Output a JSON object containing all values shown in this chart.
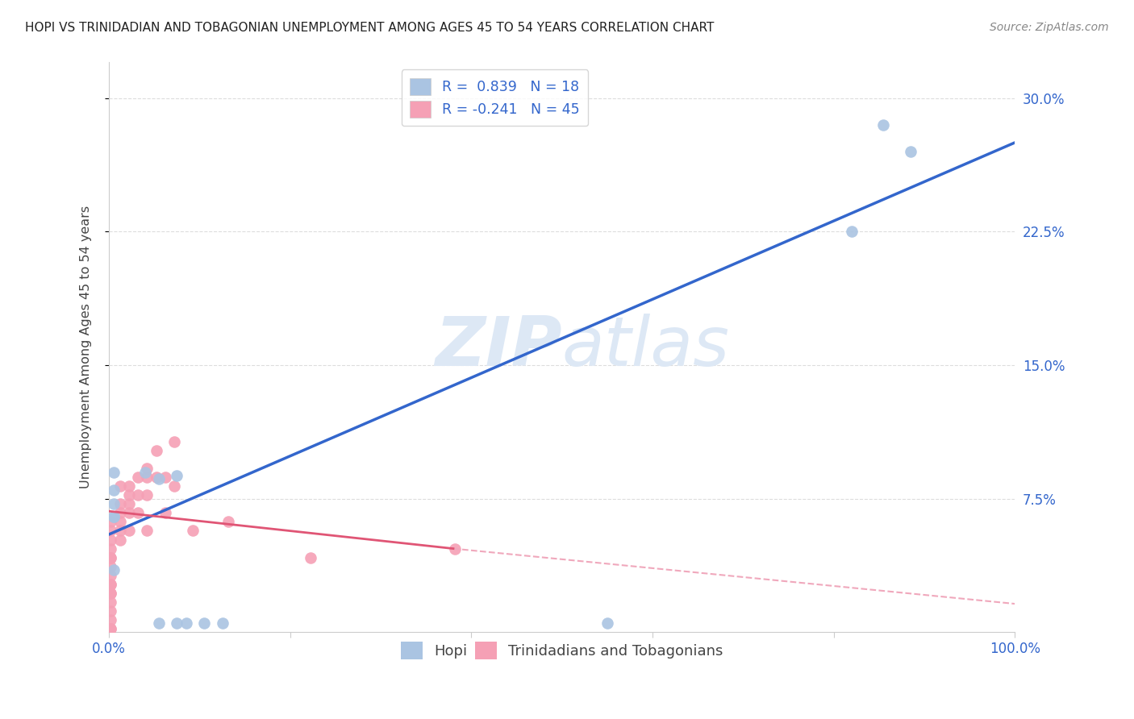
{
  "title": "HOPI VS TRINIDADIAN AND TOBAGONIAN UNEMPLOYMENT AMONG AGES 45 TO 54 YEARS CORRELATION CHART",
  "source": "Source: ZipAtlas.com",
  "ylabel": "Unemployment Among Ages 45 to 54 years",
  "xlim": [
    0.0,
    1.0
  ],
  "ylim": [
    0.0,
    0.32
  ],
  "xticks": [
    0.0,
    0.2,
    0.4,
    0.6,
    0.8,
    1.0
  ],
  "xticklabels": [
    "0.0%",
    "",
    "",
    "",
    "",
    "100.0%"
  ],
  "yticks": [
    0.075,
    0.15,
    0.225,
    0.3
  ],
  "yticklabels": [
    "7.5%",
    "15.0%",
    "22.5%",
    "30.0%"
  ],
  "hopi_R": 0.839,
  "hopi_N": 18,
  "trini_R": -0.241,
  "trini_N": 45,
  "hopi_color": "#aac4e2",
  "trini_color": "#f5a0b5",
  "hopi_line_color": "#3366cc",
  "trini_line_color": "#e05575",
  "trini_line_dash_color": "#f0a8bc",
  "watermark_color": "#dde8f5",
  "hopi_x": [
    0.005,
    0.005,
    0.005,
    0.005,
    0.005,
    0.005,
    0.04,
    0.055,
    0.055,
    0.075,
    0.075,
    0.085,
    0.105,
    0.125,
    0.55,
    0.82,
    0.855,
    0.885
  ],
  "hopi_y": [
    0.065,
    0.065,
    0.072,
    0.08,
    0.09,
    0.035,
    0.09,
    0.086,
    0.005,
    0.088,
    0.005,
    0.005,
    0.005,
    0.005,
    0.005,
    0.225,
    0.285,
    0.27
  ],
  "trini_x": [
    0.002,
    0.002,
    0.002,
    0.002,
    0.002,
    0.002,
    0.002,
    0.002,
    0.002,
    0.002,
    0.002,
    0.002,
    0.002,
    0.002,
    0.002,
    0.002,
    0.002,
    0.012,
    0.012,
    0.012,
    0.012,
    0.012,
    0.012,
    0.022,
    0.022,
    0.022,
    0.022,
    0.022,
    0.032,
    0.032,
    0.032,
    0.042,
    0.042,
    0.042,
    0.042,
    0.052,
    0.052,
    0.062,
    0.062,
    0.072,
    0.072,
    0.092,
    0.132,
    0.222,
    0.382
  ],
  "trini_y": [
    0.062,
    0.057,
    0.052,
    0.047,
    0.042,
    0.042,
    0.037,
    0.032,
    0.027,
    0.027,
    0.022,
    0.022,
    0.017,
    0.012,
    0.007,
    0.002,
    0.002,
    0.082,
    0.072,
    0.067,
    0.062,
    0.057,
    0.052,
    0.082,
    0.077,
    0.072,
    0.067,
    0.057,
    0.087,
    0.077,
    0.067,
    0.092,
    0.087,
    0.077,
    0.057,
    0.102,
    0.087,
    0.087,
    0.067,
    0.107,
    0.082,
    0.057,
    0.062,
    0.042,
    0.047
  ],
  "background_color": "#ffffff",
  "grid_color": "#dddddd",
  "tick_color": "#3366cc",
  "axis_color": "#cccccc"
}
